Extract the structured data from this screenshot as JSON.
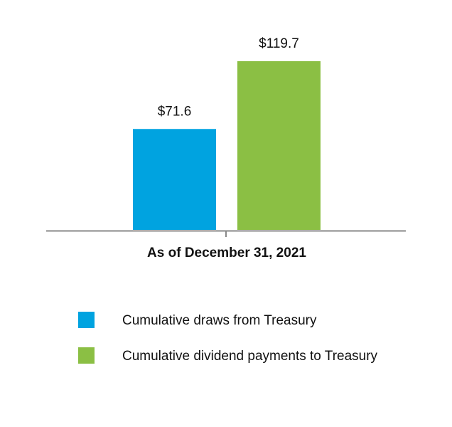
{
  "chart_data": {
    "type": "bar",
    "categories": [
      "As of December 31, 2021"
    ],
    "series": [
      {
        "name": "Cumulative draws from Treasury",
        "color": "#00a3e0",
        "values": [
          71.6
        ],
        "value_labels": [
          "$71.6"
        ]
      },
      {
        "name": "Cumulative dividend payments to Treasury",
        "color": "#8bbf44",
        "values": [
          119.7
        ],
        "value_labels": [
          "$119.7"
        ]
      }
    ],
    "legend": "bottom"
  }
}
